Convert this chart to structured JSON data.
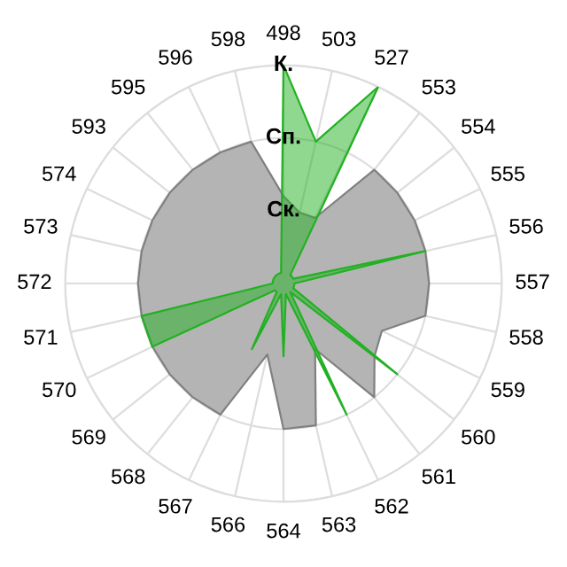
{
  "chart_data": {
    "type": "radar",
    "categories": [
      "498",
      "503",
      "527",
      "553",
      "554",
      "555",
      "556",
      "557",
      "558",
      "559",
      "560",
      "561",
      "562",
      "563",
      "564",
      "566",
      "567",
      "568",
      "569",
      "570",
      "571",
      "572",
      "573",
      "574",
      "593",
      "595",
      "596",
      "598"
    ],
    "ylim": [
      0,
      3
    ],
    "yticks": [
      {
        "value": 1,
        "label": "Ск."
      },
      {
        "value": 2,
        "label": "Сп."
      },
      {
        "value": 3,
        "label": "К."
      }
    ],
    "grid": true,
    "series": [
      {
        "color": "#b4b4b4",
        "values": [
          1.2,
          1.0,
          1.0,
          2.0,
          2.0,
          2.0,
          2.0,
          2.0,
          2.0,
          1.5,
          1.6,
          2.0,
          1.0,
          2.0,
          2.0,
          1.0,
          2.0,
          2.0,
          2.0,
          2.0,
          2.0,
          2.0,
          2.0,
          2.0,
          2.0,
          2.0,
          2.0,
          2.0
        ]
      },
      {
        "color": "#22b122",
        "values": [
          3.0,
          2.0,
          3.0,
          0.15,
          0.15,
          0.15,
          2.0,
          0.15,
          0.15,
          0.15,
          2.0,
          0.15,
          2.0,
          0.15,
          1.0,
          0.15,
          1.0,
          0.15,
          0.15,
          2.0,
          2.0,
          0.15,
          0.15,
          0.15,
          0.15,
          0.15,
          0.15,
          0.15
        ]
      }
    ]
  }
}
